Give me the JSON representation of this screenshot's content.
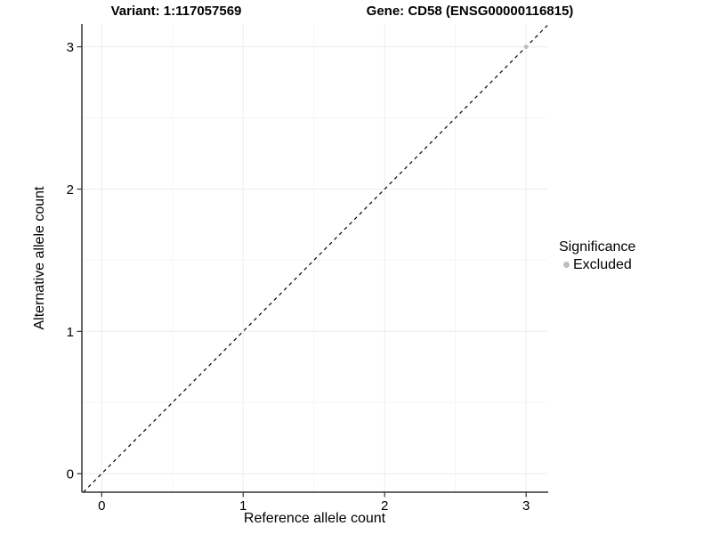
{
  "header": {
    "variant_title": "Variant: 1:117057569",
    "gene_title": "Gene: CD58 (ENSG00000116815)"
  },
  "legend": {
    "title": "Significance",
    "items": [
      {
        "label": "Excluded",
        "color": "#bebebe"
      }
    ]
  },
  "chart_data": {
    "type": "scatter",
    "title": "Variant: 1:117057569 / Gene: CD58 (ENSG00000116815)",
    "xlabel": "Reference allele count",
    "ylabel": "Alternative allele count",
    "xlim": [
      -0.14,
      3.15
    ],
    "ylim": [
      -0.13,
      3.16
    ],
    "x_ticks": [
      0,
      1,
      2,
      3
    ],
    "y_ticks": [
      0,
      1,
      2,
      3
    ],
    "x_minor_ticks": [
      0.5,
      1.5,
      2.5
    ],
    "y_minor_ticks": [
      0.5,
      1.5,
      2.5
    ],
    "grid": true,
    "legend_position": "right",
    "series": [
      {
        "name": "Excluded",
        "color": "#bebebe",
        "points": [
          [
            3,
            3
          ]
        ],
        "point_radius": 2.5
      }
    ],
    "reference_line": {
      "type": "identity",
      "slope": 1,
      "intercept": 0,
      "style": "dashed",
      "color": "#000000"
    }
  },
  "colors": {
    "background": "#ffffff",
    "panel_background": "#ffffff",
    "major_grid": "#ececec",
    "minor_grid": "#f5f5f5",
    "axis_line": "#333333",
    "tick_text": "#000000",
    "excluded_point": "#bebebe"
  }
}
